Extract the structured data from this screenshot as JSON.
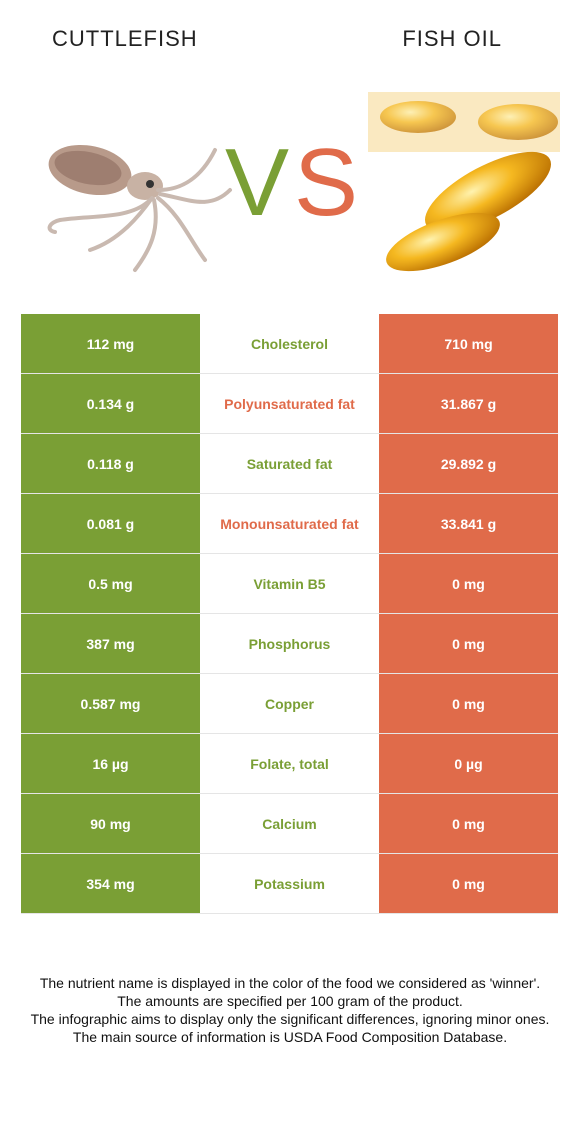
{
  "header": {
    "left_title": "CUTTLEFISH",
    "right_title": "FISH OIL",
    "vs_v": "V",
    "vs_s": "S"
  },
  "colors": {
    "left": "#7a9f35",
    "right": "#e06b4a"
  },
  "rows": [
    {
      "left": "112 mg",
      "nutrient": "Cholesterol",
      "right": "710 mg",
      "winner": "left"
    },
    {
      "left": "0.134 g",
      "nutrient": "Polyunsaturated fat",
      "right": "31.867 g",
      "winner": "right"
    },
    {
      "left": "0.118 g",
      "nutrient": "Saturated fat",
      "right": "29.892 g",
      "winner": "left"
    },
    {
      "left": "0.081 g",
      "nutrient": "Monounsaturated fat",
      "right": "33.841 g",
      "winner": "right"
    },
    {
      "left": "0.5 mg",
      "nutrient": "Vitamin B5",
      "right": "0 mg",
      "winner": "left"
    },
    {
      "left": "387 mg",
      "nutrient": "Phosphorus",
      "right": "0 mg",
      "winner": "left"
    },
    {
      "left": "0.587 mg",
      "nutrient": "Copper",
      "right": "0 mg",
      "winner": "left"
    },
    {
      "left": "16 µg",
      "nutrient": "Folate, total",
      "right": "0 µg",
      "winner": "left"
    },
    {
      "left": "90 mg",
      "nutrient": "Calcium",
      "right": "0 mg",
      "winner": "left"
    },
    {
      "left": "354 mg",
      "nutrient": "Potassium",
      "right": "0 mg",
      "winner": "left"
    }
  ],
  "footnote": {
    "line1": "The nutrient name is displayed in the color of the food we considered as 'winner'.",
    "line2": "The amounts are specified per 100 gram of the product.",
    "line3": "The infographic aims to display only the significant differences, ignoring minor ones.",
    "line4": "The main source of information is USDA Food Composition Database."
  }
}
